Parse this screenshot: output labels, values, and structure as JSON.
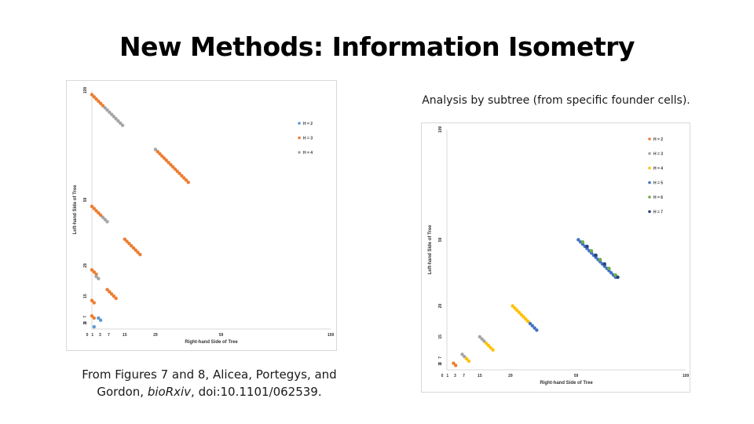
{
  "slide": {
    "title": "New Methods: Information Isometry",
    "caption_left_line1": "From Figures 7 and 8, Alicea, Portegys, and",
    "caption_left_line2_prefix": "Gordon, ",
    "caption_left_journal": "bioRxiv",
    "caption_left_line2_suffix": ", doi:10.1101/062539.",
    "caption_right": "Analysis by subtree (from specific founder cells)."
  },
  "chart_data": [
    {
      "type": "scatter",
      "title": "",
      "xlabel": "Right-hand Side of Tree",
      "ylabel": "Left-hand Side of Tree",
      "xlim": [
        0,
        109
      ],
      "ylim": [
        0,
        109
      ],
      "xticks": [
        0,
        1,
        3,
        7,
        15,
        29,
        59,
        109
      ],
      "yticks": [
        0,
        1,
        3,
        7,
        15,
        29,
        59,
        109
      ],
      "grid": false,
      "legend_position": "top-right",
      "series": [
        {
          "name": "H = 2",
          "color": "#5b9bd5",
          "points": [
            [
              1,
              1
            ],
            [
              3,
              5
            ],
            [
              4,
              4
            ]
          ]
        },
        {
          "name": "H = 3",
          "color": "#ed7d31",
          "points": [
            [
              0,
              6
            ],
            [
              1,
              5
            ],
            [
              0,
              13
            ],
            [
              1,
              12
            ],
            [
              0,
              27
            ],
            [
              1,
              26
            ],
            [
              2,
              25
            ],
            [
              0,
              56
            ],
            [
              1,
              55
            ],
            [
              2,
              54
            ],
            [
              3,
              53
            ],
            [
              4,
              52
            ],
            [
              0,
              107
            ],
            [
              1,
              106
            ],
            [
              2,
              105
            ],
            [
              3,
              104
            ],
            [
              4,
              103
            ],
            [
              5,
              102
            ],
            [
              7,
              18
            ],
            [
              8,
              17
            ],
            [
              9,
              16
            ],
            [
              10,
              15
            ],
            [
              11,
              14
            ],
            [
              15,
              41
            ],
            [
              16,
              40
            ],
            [
              17,
              39
            ],
            [
              18,
              38
            ],
            [
              19,
              37
            ],
            [
              20,
              36
            ],
            [
              21,
              35
            ],
            [
              22,
              34
            ],
            [
              30,
              81
            ],
            [
              31,
              80
            ],
            [
              32,
              79
            ],
            [
              33,
              78
            ],
            [
              34,
              77
            ],
            [
              35,
              76
            ],
            [
              36,
              75
            ],
            [
              37,
              74
            ],
            [
              38,
              73
            ],
            [
              39,
              72
            ],
            [
              40,
              71
            ],
            [
              41,
              70
            ],
            [
              42,
              69
            ],
            [
              43,
              68
            ],
            [
              44,
              67
            ]
          ]
        },
        {
          "name": "H = 4",
          "color": "#a5a5a5",
          "points": [
            [
              2,
              24
            ],
            [
              3,
              23
            ],
            [
              5,
              51
            ],
            [
              6,
              50
            ],
            [
              7,
              49
            ],
            [
              6,
              101
            ],
            [
              7,
              100
            ],
            [
              8,
              99
            ],
            [
              9,
              98
            ],
            [
              10,
              97
            ],
            [
              11,
              96
            ],
            [
              12,
              95
            ],
            [
              13,
              94
            ],
            [
              14,
              93
            ],
            [
              29,
              82
            ]
          ]
        }
      ]
    },
    {
      "type": "scatter",
      "title": "",
      "xlabel": "Right-hand Side of Tree",
      "ylabel": "Left-hand Side of Tree",
      "xlim": [
        0,
        109
      ],
      "ylim": [
        0,
        109
      ],
      "xticks": [
        0,
        1,
        3,
        7,
        15,
        29,
        59,
        109
      ],
      "yticks": [
        0,
        1,
        3,
        7,
        15,
        29,
        59,
        109
      ],
      "grid": false,
      "legend_position": "top-right",
      "series": [
        {
          "name": "H = 2",
          "color": "#ed7d31",
          "points": [
            [
              3,
              3
            ],
            [
              4,
              2
            ]
          ]
        },
        {
          "name": "H = 3",
          "color": "#a5a5a5",
          "points": [
            [
              7,
              7
            ],
            [
              8,
              6
            ],
            [
              15,
              15
            ],
            [
              16,
              14
            ],
            [
              17,
              13
            ]
          ]
        },
        {
          "name": "H = 4",
          "color": "#ffc000",
          "points": [
            [
              9,
              5
            ],
            [
              10,
              4
            ],
            [
              18,
              12
            ],
            [
              19,
              11
            ],
            [
              20,
              10
            ],
            [
              21,
              9
            ],
            [
              30,
              29
            ],
            [
              31,
              28
            ],
            [
              32,
              27
            ],
            [
              33,
              26
            ],
            [
              34,
              25
            ],
            [
              35,
              24
            ],
            [
              36,
              23
            ],
            [
              37,
              22
            ]
          ]
        },
        {
          "name": "H = 5",
          "color": "#4472c4",
          "points": [
            [
              38,
              21
            ],
            [
              39,
              20
            ],
            [
              40,
              19
            ],
            [
              41,
              18
            ],
            [
              60,
              59
            ],
            [
              61,
              58
            ],
            [
              62,
              57
            ],
            [
              63,
              56
            ],
            [
              64,
              55
            ],
            [
              65,
              54
            ],
            [
              66,
              53
            ],
            [
              67,
              52
            ],
            [
              68,
              51
            ],
            [
              69,
              50
            ],
            [
              70,
              49
            ],
            [
              71,
              48
            ],
            [
              72,
              47
            ],
            [
              73,
              46
            ],
            [
              74,
              45
            ],
            [
              75,
              44
            ],
            [
              76,
              43
            ],
            [
              77,
              42
            ]
          ]
        },
        {
          "name": "H = 6",
          "color": "#70ad47",
          "points": [
            [
              62,
              58
            ],
            [
              66,
              54
            ],
            [
              70,
              50
            ],
            [
              74,
              46
            ],
            [
              77,
              43
            ]
          ]
        },
        {
          "name": "H = 7",
          "color": "#264478",
          "points": [
            [
              64,
              56
            ],
            [
              68,
              52
            ],
            [
              72,
              48
            ],
            [
              78,
              42
            ]
          ]
        }
      ]
    }
  ]
}
